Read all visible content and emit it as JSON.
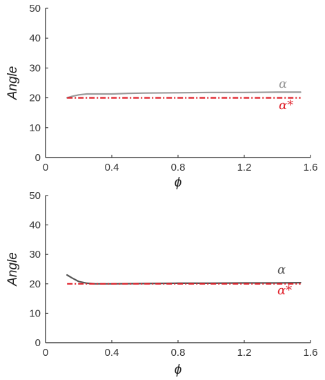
{
  "chart_data": [
    {
      "type": "line",
      "xlabel": "ϕ",
      "ylabel": "Angle",
      "xlim": [
        0,
        1.6
      ],
      "ylim": [
        0,
        50
      ],
      "xticks": [
        "0",
        "0.4",
        "0.8",
        "1.2",
        "1.6"
      ],
      "yticks": [
        "0",
        "10",
        "20",
        "30",
        "40",
        "50"
      ],
      "grid": false,
      "series": [
        {
          "name": "α",
          "color": "#999999",
          "style": "solid",
          "x": [
            0.13,
            0.16,
            0.2,
            0.25,
            0.3,
            0.4,
            0.5,
            0.6,
            0.8,
            1.0,
            1.2,
            1.4,
            1.54
          ],
          "y": [
            20.0,
            20.5,
            21.0,
            21.3,
            21.3,
            21.3,
            21.5,
            21.6,
            21.7,
            21.8,
            21.8,
            21.9,
            21.9
          ]
        },
        {
          "name": "α*",
          "color": "#e0202a",
          "style": "dash-dot",
          "x": [
            0.13,
            1.54
          ],
          "y": [
            20,
            20
          ]
        }
      ]
    },
    {
      "type": "line",
      "xlabel": "ϕ",
      "ylabel": "Angle",
      "xlim": [
        0,
        1.6
      ],
      "ylim": [
        0,
        50
      ],
      "xticks": [
        "0",
        "0.4",
        "0.8",
        "1.2",
        "1.6"
      ],
      "yticks": [
        "0",
        "10",
        "20",
        "30",
        "40",
        "50"
      ],
      "grid": false,
      "series": [
        {
          "name": "α",
          "color": "#555555",
          "style": "solid",
          "x": [
            0.13,
            0.16,
            0.2,
            0.25,
            0.3,
            0.4,
            0.6,
            0.8,
            1.0,
            1.2,
            1.4,
            1.54
          ],
          "y": [
            23.0,
            22.0,
            20.8,
            20.2,
            20.0,
            20.0,
            20.1,
            20.2,
            20.2,
            20.3,
            20.3,
            20.4
          ]
        },
        {
          "name": "α*",
          "color": "#e0202a",
          "style": "dash-dot",
          "x": [
            0.13,
            1.54
          ],
          "y": [
            20,
            20
          ]
        }
      ]
    }
  ]
}
